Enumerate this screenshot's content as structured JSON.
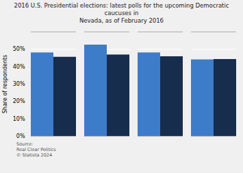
{
  "chart_data": {
    "type": "bar",
    "title": "2016 U.S. Presidential elections: latest polls for the upcoming Democratic caucuses in\nNevada, as of February 2016",
    "ylabel": "Share of respondents",
    "source": "Source:\nReal Clear Politics\n© Statista 2024",
    "categories": [
      null,
      null,
      null,
      null
    ],
    "series": [
      {
        "color": "#3d7cc9",
        "values": [
          0.48,
          0.525,
          0.48,
          0.44
        ]
      },
      {
        "color": "#172d4d",
        "values": [
          0.455,
          0.468,
          0.458,
          0.442
        ]
      }
    ],
    "ylim": [
      0,
      0.6
    ],
    "yticks": [
      {
        "value": 0,
        "label": "0%"
      },
      {
        "value": 0.1,
        "label": "10%"
      },
      {
        "value": 0.2,
        "label": "20%"
      },
      {
        "value": 0.3,
        "label": "30%"
      },
      {
        "value": 0.4,
        "label": "40%"
      },
      {
        "value": 0.5,
        "label": "50%"
      }
    ],
    "grid": true
  }
}
